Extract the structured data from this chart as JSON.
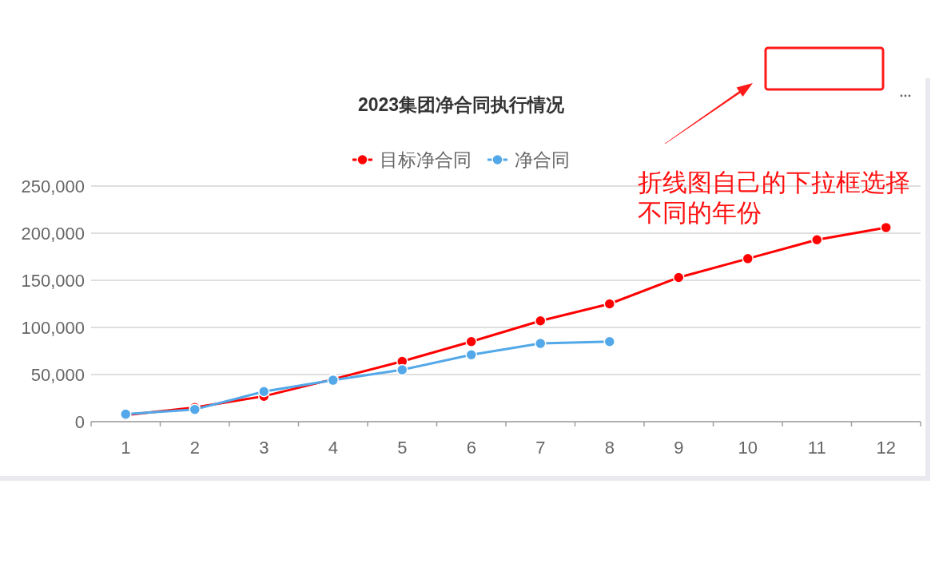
{
  "chart_data": {
    "type": "line",
    "title": "2023集团净合同执行情况",
    "categories": [
      "1",
      "2",
      "3",
      "4",
      "5",
      "6",
      "7",
      "8",
      "9",
      "10",
      "11",
      "12"
    ],
    "series": [
      {
        "name": "目标净合同",
        "color": "#ff0000",
        "values": [
          7000,
          15000,
          27000,
          45000,
          64000,
          85000,
          107000,
          125000,
          153000,
          173000,
          193000,
          206000
        ]
      },
      {
        "name": "净合同",
        "color": "#52a8e8",
        "values": [
          8000,
          13000,
          32000,
          44000,
          55000,
          71000,
          83000,
          85000,
          null,
          null,
          null,
          null
        ]
      }
    ],
    "ylim": [
      0,
      250000
    ],
    "yticks": [
      0,
      {
        "value": 50000,
        "label": "50,000"
      },
      {
        "value": 100000,
        "label": "100,000"
      },
      {
        "value": 150000,
        "label": "150,000"
      },
      {
        "value": 200000,
        "label": "200,000"
      },
      {
        "value": 250000,
        "label": "250,000"
      }
    ],
    "grid": "y",
    "legend": "top",
    "marker": "circle",
    "line_style": "solid",
    "annotations": [
      "折线图自己的下拉框选择不同的年份"
    ]
  }
}
